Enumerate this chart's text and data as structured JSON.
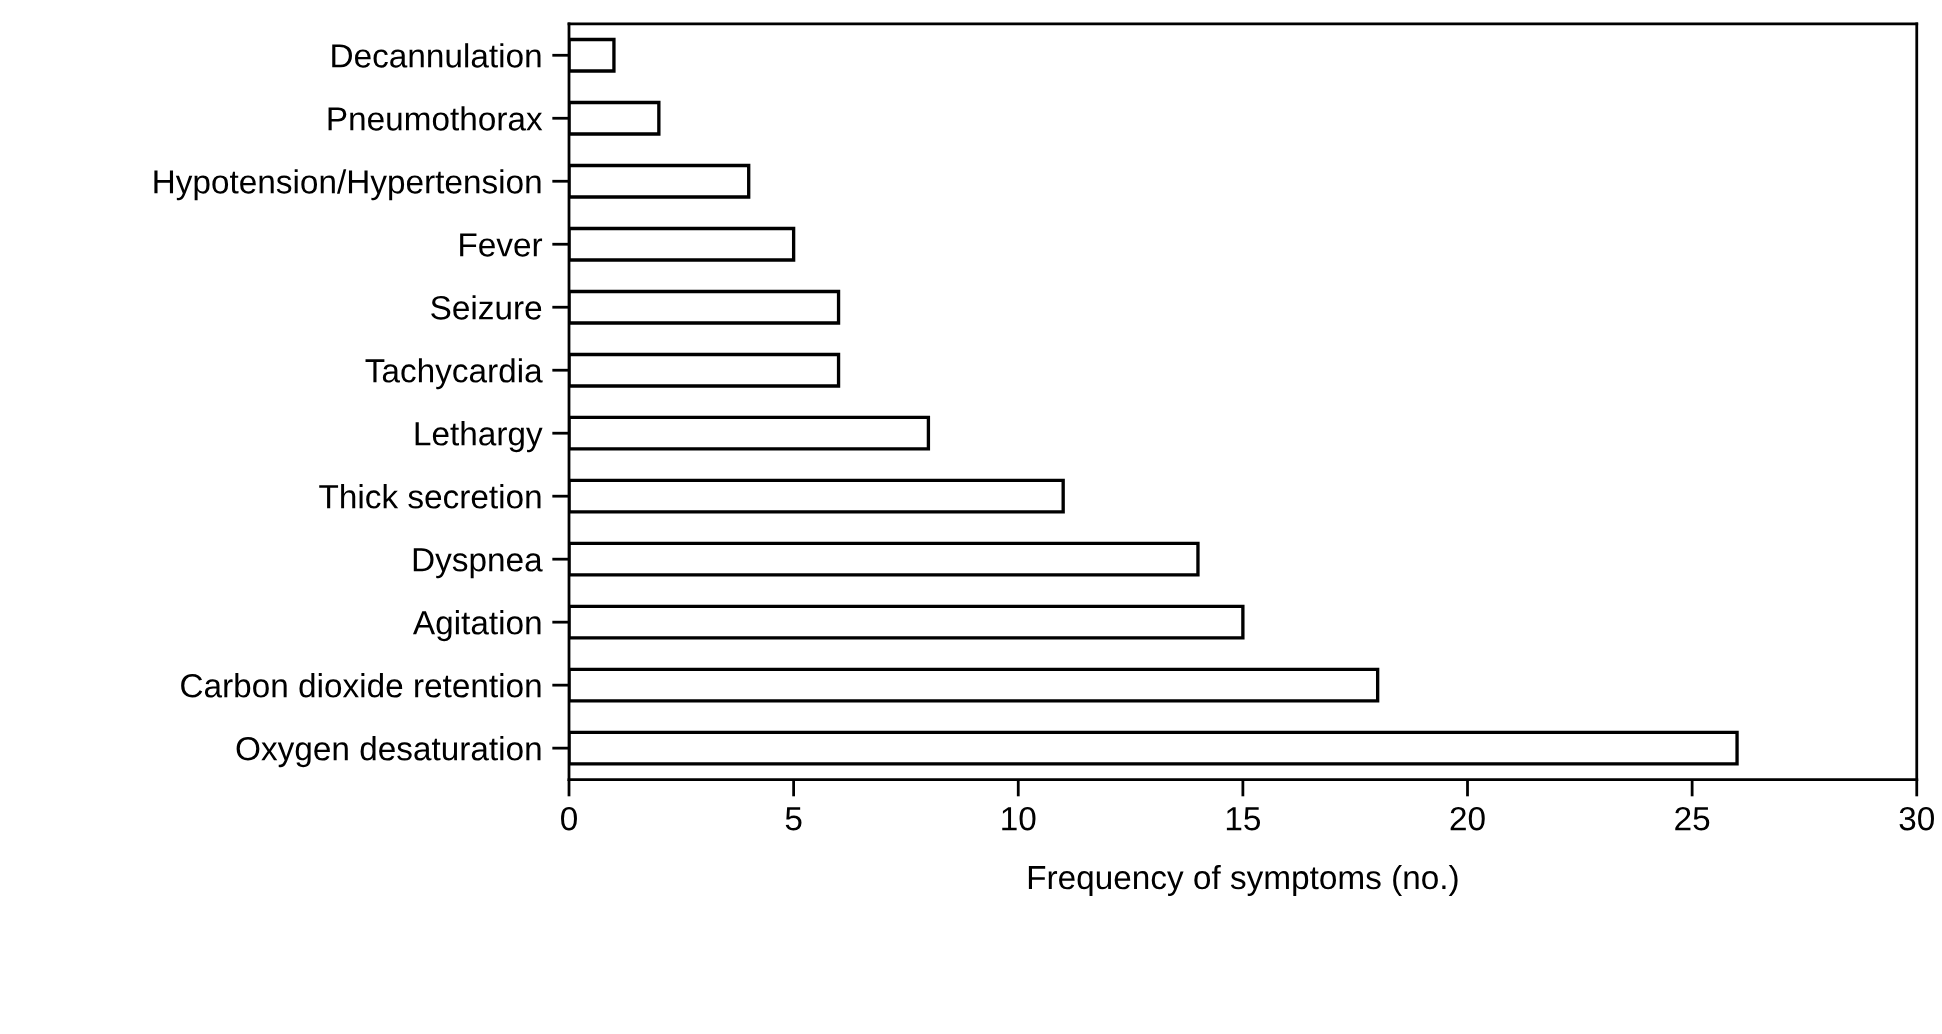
{
  "chart_data": {
    "type": "bar",
    "orientation": "horizontal",
    "xlabel": "Frequency of symptoms (no.)",
    "categories": [
      "Decannulation",
      "Pneumothorax",
      "Hypotension/Hypertension",
      "Fever",
      "Seizure",
      "Tachycardia",
      "Lethargy",
      "Thick secretion",
      "Dyspnea",
      "Agitation",
      "Carbon dioxide retention",
      "Oxygen desaturation"
    ],
    "values": [
      1,
      2,
      4,
      5,
      6,
      6,
      8,
      11,
      14,
      15,
      18,
      26
    ],
    "color": "#ffffff",
    "xlim": [
      0,
      30
    ],
    "xticks": [
      0,
      5,
      10,
      15,
      20,
      25,
      30
    ],
    "grid": false,
    "legend": false
  }
}
